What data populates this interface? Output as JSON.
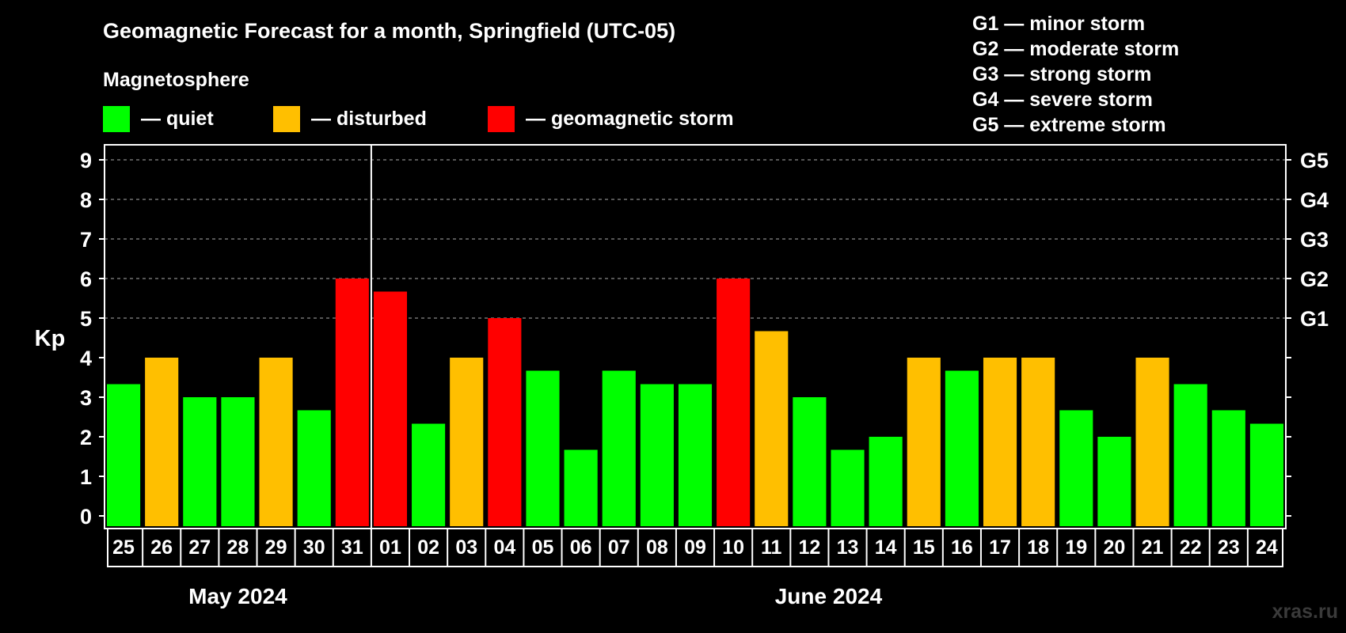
{
  "chart_data": {
    "type": "bar",
    "title": "Geomagnetic Forecast for a month, Springfield (UTC-05)",
    "ylabel": "Kp",
    "ylim": [
      0,
      9
    ],
    "yticks": [
      "0",
      "1",
      "2",
      "3",
      "4",
      "5",
      "6",
      "7",
      "8",
      "9"
    ],
    "right_axis_labels": [
      {
        "kp": 5,
        "label": "G1"
      },
      {
        "kp": 6,
        "label": "G2"
      },
      {
        "kp": 7,
        "label": "G3"
      },
      {
        "kp": 8,
        "label": "G4"
      },
      {
        "kp": 9,
        "label": "G5"
      }
    ],
    "legend": {
      "title": "Magnetosphere",
      "items": [
        {
          "label": "— quiet",
          "color": "#00ff00"
        },
        {
          "label": "— disturbed",
          "color": "#ffbf00"
        },
        {
          "label": "— geomagnetic storm",
          "color": "#ff0000"
        }
      ]
    },
    "storm_scale": [
      "G1 — minor storm",
      "G2 — moderate storm",
      "G3 — strong storm",
      "G4 — severe storm",
      "G5 — extreme storm"
    ],
    "months": [
      {
        "label": "May 2024",
        "start": 0,
        "end": 6
      },
      {
        "label": "June 2024",
        "start": 7,
        "end": 30
      }
    ],
    "month_divider_after": 6,
    "categories": [
      "25",
      "26",
      "27",
      "28",
      "29",
      "30",
      "31",
      "01",
      "02",
      "03",
      "04",
      "05",
      "06",
      "07",
      "08",
      "09",
      "10",
      "11",
      "12",
      "13",
      "14",
      "15",
      "16",
      "17",
      "18",
      "19",
      "20",
      "21",
      "22",
      "23",
      "24"
    ],
    "values": [
      3.33,
      4,
      3,
      3,
      4,
      2.67,
      6,
      5.67,
      2.33,
      4,
      5,
      3.67,
      1.67,
      3.67,
      3.33,
      3.33,
      6,
      4.67,
      3,
      1.67,
      2,
      4,
      3.67,
      4,
      4,
      2.67,
      2,
      4,
      3.33,
      2.67,
      2.33
    ],
    "level": [
      "quiet",
      "disturbed",
      "quiet",
      "quiet",
      "disturbed",
      "quiet",
      "storm",
      "storm",
      "quiet",
      "disturbed",
      "storm",
      "quiet",
      "quiet",
      "quiet",
      "quiet",
      "quiet",
      "storm",
      "disturbed",
      "quiet",
      "quiet",
      "quiet",
      "disturbed",
      "quiet",
      "disturbed",
      "disturbed",
      "quiet",
      "quiet",
      "disturbed",
      "quiet",
      "quiet",
      "quiet"
    ],
    "level_colors": {
      "quiet": "#00ff00",
      "disturbed": "#ffbf00",
      "storm": "#ff0000"
    }
  },
  "watermark": "xras.ru"
}
